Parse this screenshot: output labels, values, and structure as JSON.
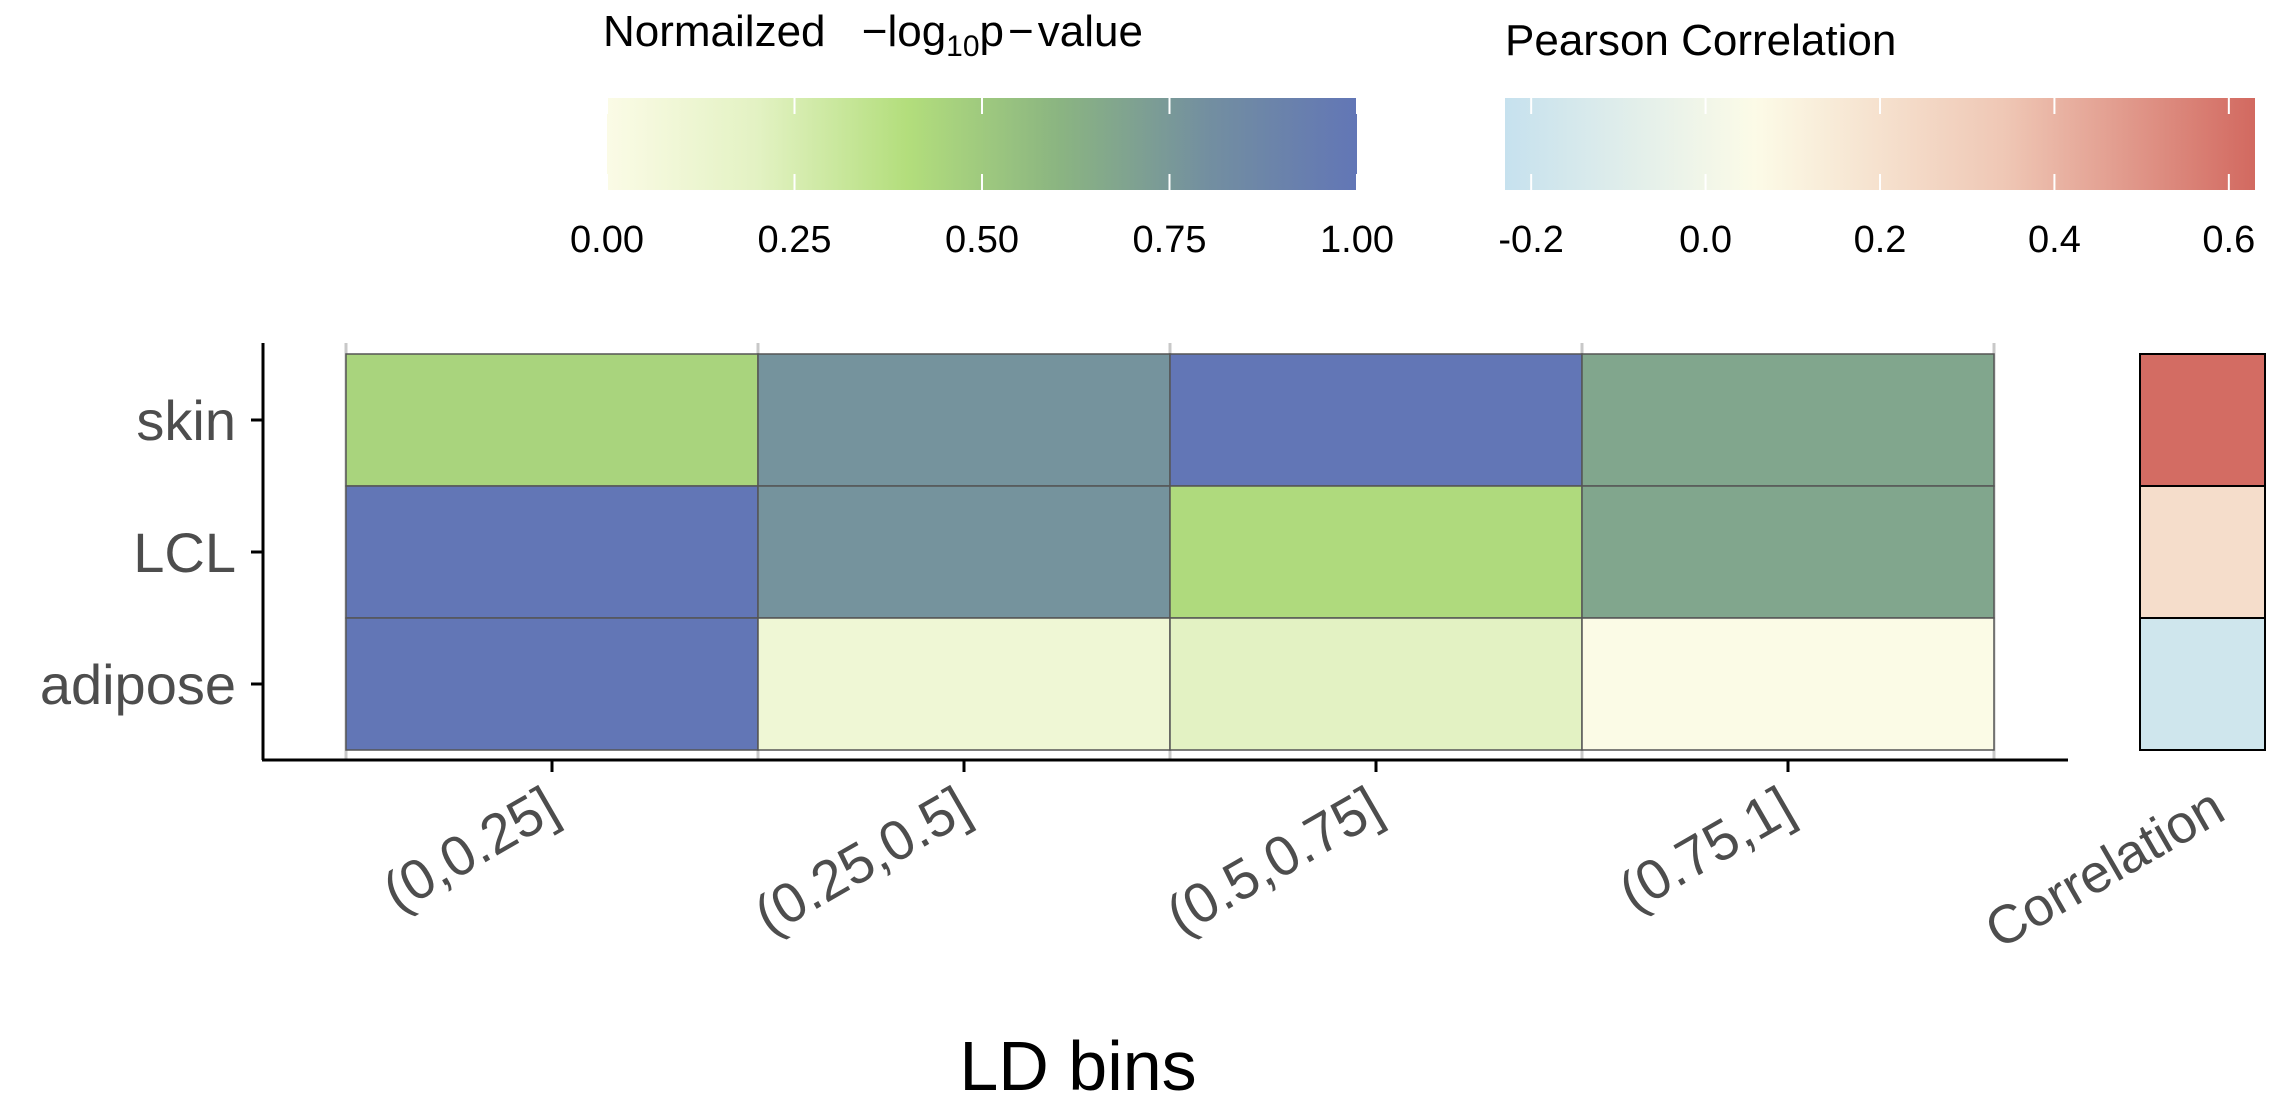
{
  "chart_data": {
    "type": "heatmap",
    "title": "",
    "xlabel": "LD bins",
    "ylabel": "",
    "categories": [
      "(0,0.25]",
      "(0.25,0.5]",
      "(0.5,0.75]",
      "(0.75,1]"
    ],
    "rows": [
      "skin",
      "LCL",
      "adipose"
    ],
    "values": [
      [
        0.45,
        0.78,
        1.0,
        0.68
      ],
      [
        1.0,
        0.78,
        0.42,
        0.68
      ],
      [
        1.0,
        0.1,
        0.2,
        0.0
      ]
    ],
    "fill_scale": {
      "title_prefix": "Normailzed",
      "title_neg": "−",
      "title_log": "log",
      "title_sub": "10",
      "title_p": "p",
      "title_minus": "−",
      "title_value": "value",
      "range": [
        0,
        1
      ],
      "ticks": [
        "0.00",
        "0.25",
        "0.50",
        "0.75",
        "1.00"
      ],
      "colors": [
        "#fbfbe6",
        "#e3f2c3",
        "#b3de7c",
        "#8bb581",
        "#738fa0",
        "#6276b6"
      ]
    },
    "correlation": {
      "label": "Correlation",
      "values": [
        0.62,
        0.22,
        -0.18
      ],
      "legend_title": "Pearson Correlation",
      "range": [
        -0.23,
        0.63
      ],
      "ticks": [
        "-0.2",
        "0.0",
        "0.2",
        "0.4",
        "0.6"
      ],
      "colors": [
        "#c6e1ee",
        "#fcfbe7",
        "#efc7b5",
        "#d26960"
      ]
    },
    "grid": true,
    "legend_position": "top"
  }
}
